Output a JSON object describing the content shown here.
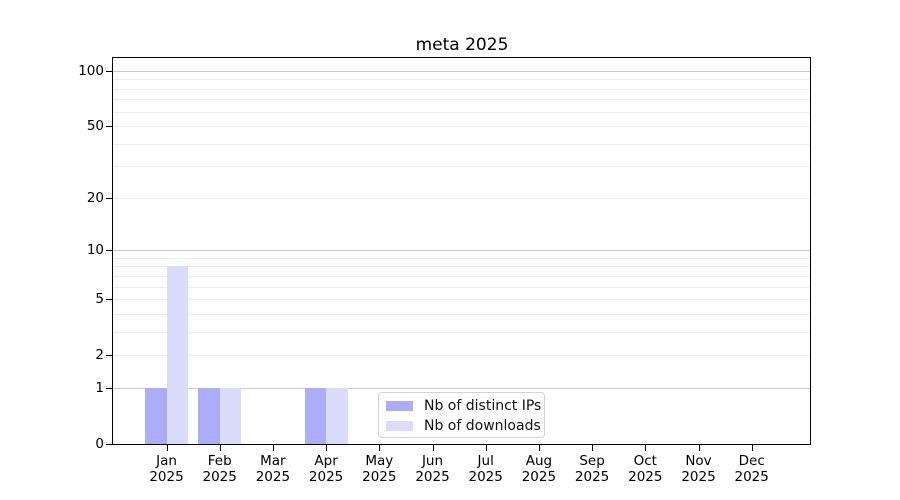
{
  "chart_data": {
    "type": "bar",
    "title": "meta 2025",
    "categories": [
      "Jan",
      "Feb",
      "Mar",
      "Apr",
      "May",
      "Jun",
      "Jul",
      "Aug",
      "Sep",
      "Oct",
      "Nov",
      "Dec"
    ],
    "category_year": "2025",
    "series": [
      {
        "name": "Nb of distinct IPs",
        "color": "#acacf9",
        "values": [
          1,
          1,
          0,
          1,
          0,
          0,
          0,
          0,
          0,
          0,
          0,
          0
        ]
      },
      {
        "name": "Nb of downloads",
        "color": "#dbdbfa",
        "values": [
          8,
          1,
          0,
          1,
          0,
          0,
          0,
          0,
          0,
          0,
          0,
          0
        ]
      }
    ],
    "y_axis": {
      "scale": "log1p",
      "tick_values": [
        0,
        1,
        2,
        5,
        10,
        20,
        50,
        100
      ],
      "major_grid_values": [
        1,
        10,
        100
      ],
      "minor_grid_values": [
        2,
        3,
        4,
        5,
        6,
        7,
        8,
        9,
        20,
        30,
        40,
        50,
        60,
        70,
        80,
        90
      ],
      "ylim": [
        0,
        117
      ]
    },
    "xlabel": "",
    "ylabel": "",
    "grid": "horizontal",
    "legend": {
      "position": "inside-bottom-center",
      "entries": [
        "Nb of distinct IPs",
        "Nb of downloads"
      ]
    },
    "colors": {
      "axis": "#000000",
      "major_grid": "#c8c8c8",
      "minor_grid": "#ededed",
      "legend_border": "#d2d2d2",
      "background": "#ffffff"
    }
  }
}
